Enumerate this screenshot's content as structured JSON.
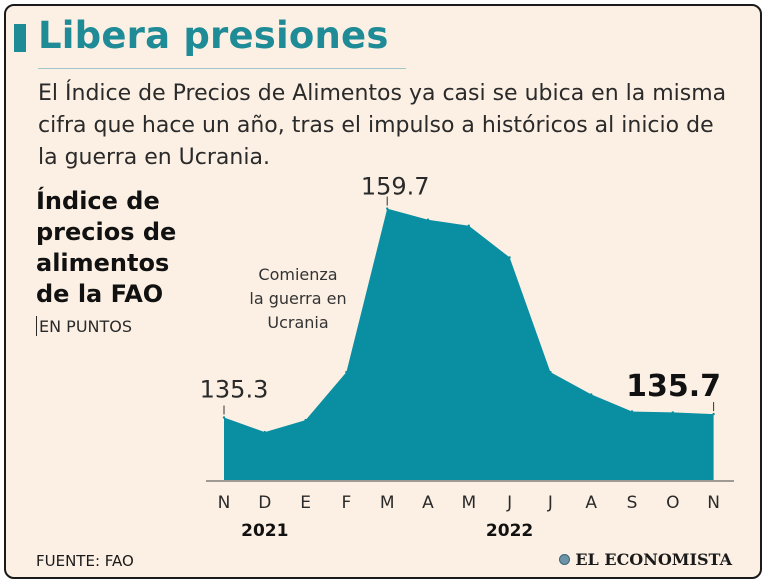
{
  "header": {
    "title": "Libera presiones",
    "subtitle": "El Índice de Precios de Alimentos ya casi se ubica en la misma cifra que hace un año, tras el impulso a históricos al inicio de la guerra en Ucrania."
  },
  "chart_label": {
    "title": "Índice de precios de alimentos de la FAO",
    "units": "EN PUNTOS"
  },
  "colors": {
    "accent": "#1e8b96",
    "area": "#0a8fa2",
    "background": "#fcf0e4"
  },
  "chart_data": {
    "type": "area",
    "title": "Índice de precios de alimentos de la FAO",
    "ylabel": "EN PUNTOS",
    "categories": [
      "N",
      "D",
      "E",
      "F",
      "M",
      "A",
      "M",
      "J",
      "J",
      "A",
      "S",
      "O",
      "N"
    ],
    "year_labels": [
      {
        "label": "2021",
        "at_index": 1
      },
      {
        "label": "2022",
        "at_index": 7
      }
    ],
    "values": [
      135.3,
      133.6,
      135.0,
      140.6,
      159.7,
      158.4,
      157.7,
      154.0,
      140.6,
      138.0,
      136.0,
      135.9,
      135.7
    ],
    "ylim": [
      128,
      160
    ],
    "grid": false,
    "annotations": [
      {
        "text": "135.3",
        "index": 0,
        "style": "normal"
      },
      {
        "text": "159.7",
        "index": 4,
        "style": "normal"
      },
      {
        "text": "135.7",
        "index": 12,
        "style": "bold"
      },
      {
        "text": "Comienza la guerra en Ucrania",
        "index": 3,
        "style": "note"
      }
    ]
  },
  "footer": {
    "source": "FUENTE: FAO",
    "brand": "EL ECONOMISTA"
  }
}
